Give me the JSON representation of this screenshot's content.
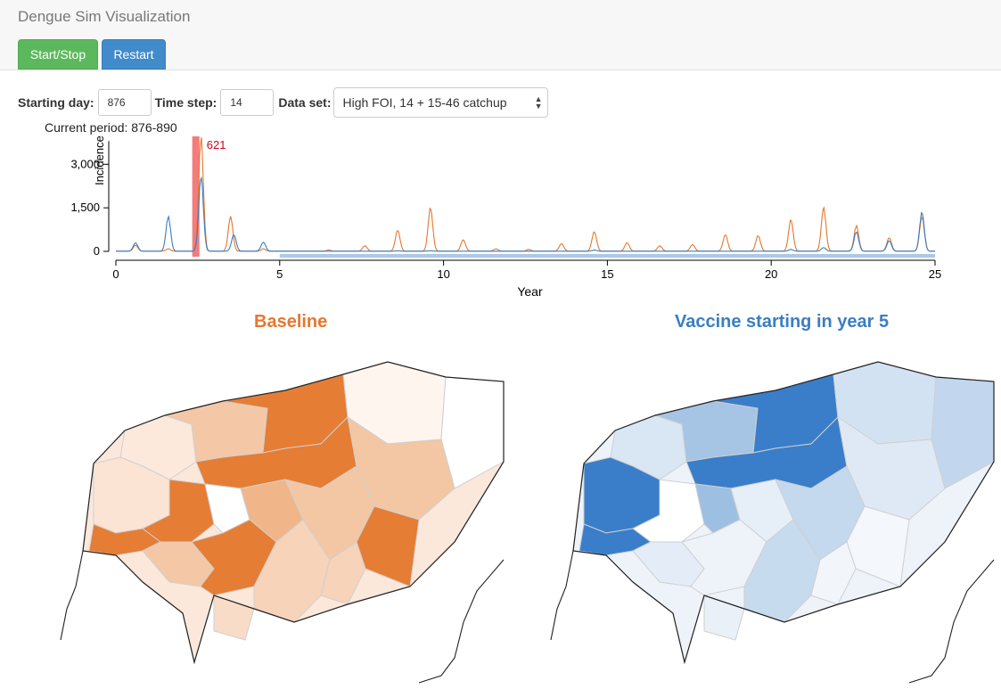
{
  "app": {
    "title": "Dengue Sim Visualization"
  },
  "toolbar": {
    "start_stop_label": "Start/Stop",
    "restart_label": "Restart"
  },
  "controls": {
    "starting_day_label": "Starting day:",
    "starting_day_value": "876",
    "time_step_label": "Time step:",
    "time_step_value": "14",
    "dataset_label": "Data set:",
    "dataset_value": "High FOI, 14 + 15-46 catchup"
  },
  "current_period": "Current period: 876-890",
  "colors": {
    "baseline": "#e6772e",
    "vaccine": "#3a7ec1",
    "highlight": "#f47c7c",
    "marker_text": "#d0021b",
    "timeline_bar": "#aac9e8"
  },
  "chart_data": {
    "type": "line",
    "ylabel": "Incidence",
    "xlabel": "Year",
    "xlim": [
      0,
      25
    ],
    "ylim": [
      0,
      3900
    ],
    "x_ticks": [
      "0",
      "5",
      "10",
      "15",
      "20",
      "25"
    ],
    "y_ticks": [
      "0",
      "1,500",
      "3,000"
    ],
    "current_window": [
      2.33,
      2.55
    ],
    "marker_label": "621",
    "vaccine_start_year": 5,
    "series": [
      {
        "color": "orange",
        "peaks": [
          [
            0.6,
            200
          ],
          [
            1.6,
            80
          ],
          [
            2.6,
            3800
          ],
          [
            3.5,
            1150
          ],
          [
            4.5,
            80
          ],
          [
            6.5,
            40
          ],
          [
            7.6,
            180
          ],
          [
            8.6,
            700
          ],
          [
            9.6,
            1450
          ],
          [
            10.6,
            380
          ],
          [
            11.6,
            80
          ],
          [
            12.6,
            60
          ],
          [
            13.6,
            250
          ],
          [
            14.6,
            650
          ],
          [
            15.6,
            280
          ],
          [
            16.6,
            180
          ],
          [
            17.6,
            220
          ],
          [
            18.6,
            550
          ],
          [
            19.6,
            520
          ],
          [
            20.6,
            1050
          ],
          [
            21.6,
            1450
          ],
          [
            22.6,
            850
          ],
          [
            23.6,
            450
          ],
          [
            24.6,
            1150
          ]
        ]
      },
      {
        "color": "blue",
        "peaks": [
          [
            0.6,
            280
          ],
          [
            1.6,
            1150
          ],
          [
            2.6,
            2500
          ],
          [
            3.6,
            550
          ],
          [
            4.5,
            300
          ],
          [
            8.6,
            15
          ],
          [
            9.6,
            15
          ],
          [
            14.6,
            40
          ],
          [
            20.6,
            60
          ],
          [
            21.6,
            120
          ],
          [
            22.6,
            650
          ],
          [
            23.6,
            350
          ],
          [
            24.6,
            1300
          ]
        ]
      }
    ]
  },
  "maps": {
    "left_title": "Baseline",
    "right_title": "Vaccine starting in year 5"
  }
}
